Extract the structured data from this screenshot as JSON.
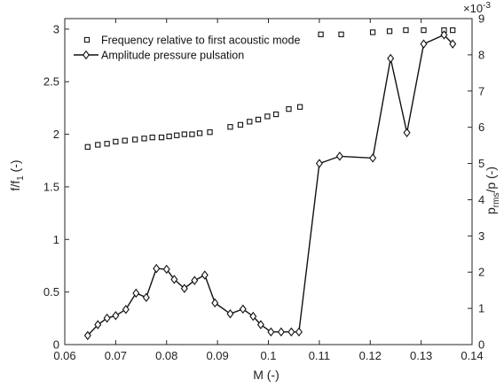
{
  "chart_data": {
    "type": "line",
    "xlabel": "M (-)",
    "ylabel_left_main": "f/f",
    "ylabel_left_sub": "1",
    "ylabel_left_suffix": " (-)",
    "ylabel_right_main": "p",
    "ylabel_right_sub": "rms",
    "ylabel_right_suffix": "/p (-)",
    "right_exponent_base": "×10",
    "right_exponent_power": "-3",
    "xlim": [
      0.06,
      0.14
    ],
    "ylim_left": [
      0,
      3.1
    ],
    "ylim_right": [
      0,
      9
    ],
    "x_ticks": [
      0.06,
      0.07,
      0.08,
      0.09,
      0.1,
      0.11,
      0.12,
      0.13,
      0.14
    ],
    "x_tick_labels": [
      "0.06",
      "0.07",
      "0.08",
      "0.09",
      "0.1",
      "0.11",
      "0.12",
      "0.13",
      "0.14"
    ],
    "y_left_ticks": [
      0,
      0.5,
      1,
      1.5,
      2,
      2.5,
      3
    ],
    "y_left_tick_labels": [
      "0",
      "0.5",
      "1",
      "1.5",
      "2",
      "2.5",
      "3"
    ],
    "y_right_ticks": [
      0,
      1,
      2,
      3,
      4,
      5,
      6,
      7,
      8,
      9
    ],
    "y_right_tick_labels": [
      "0",
      "1",
      "2",
      "3",
      "4",
      "5",
      "6",
      "7",
      "8",
      "9"
    ],
    "grid": false,
    "legend_position": "top-left",
    "series": [
      {
        "name": "Frequency relative to first acoustic mode",
        "axis": "left",
        "marker": "square",
        "line": false,
        "x": [
          0.0645,
          0.0665,
          0.0683,
          0.07,
          0.0718,
          0.0738,
          0.0756,
          0.0772,
          0.079,
          0.0805,
          0.082,
          0.0835,
          0.085,
          0.0865,
          0.0885,
          0.0925,
          0.0945,
          0.0963,
          0.098,
          0.0998,
          0.1015,
          0.104,
          0.1062,
          0.1103,
          0.1143,
          0.1205,
          0.1238,
          0.127,
          0.1305,
          0.1345,
          0.1362
        ],
        "y": [
          1.88,
          1.9,
          1.91,
          1.93,
          1.94,
          1.95,
          1.96,
          1.97,
          1.97,
          1.98,
          1.99,
          2.0,
          2.0,
          2.01,
          2.02,
          2.07,
          2.09,
          2.12,
          2.14,
          2.17,
          2.19,
          2.24,
          2.26,
          2.95,
          2.95,
          2.97,
          2.98,
          2.99,
          2.99,
          2.99,
          2.99
        ]
      },
      {
        "name": "Amplitude pressure pulsation",
        "axis": "right",
        "marker": "diamond",
        "line": true,
        "x": [
          0.0645,
          0.0665,
          0.0683,
          0.07,
          0.072,
          0.074,
          0.076,
          0.078,
          0.08,
          0.0815,
          0.0835,
          0.0855,
          0.0875,
          0.0895,
          0.0925,
          0.095,
          0.097,
          0.0985,
          0.1005,
          0.1025,
          0.1045,
          0.106,
          0.11,
          0.114,
          0.1205,
          0.124,
          0.1272,
          0.1305,
          0.1345,
          0.1362
        ],
        "y": [
          0.25,
          0.55,
          0.73,
          0.8,
          0.97,
          1.42,
          1.3,
          2.1,
          2.08,
          1.8,
          1.55,
          1.77,
          1.92,
          1.15,
          0.85,
          0.98,
          0.78,
          0.55,
          0.35,
          0.35,
          0.35,
          0.35,
          5.0,
          5.2,
          5.15,
          7.9,
          5.85,
          8.3,
          8.55,
          8.3
        ]
      }
    ]
  }
}
